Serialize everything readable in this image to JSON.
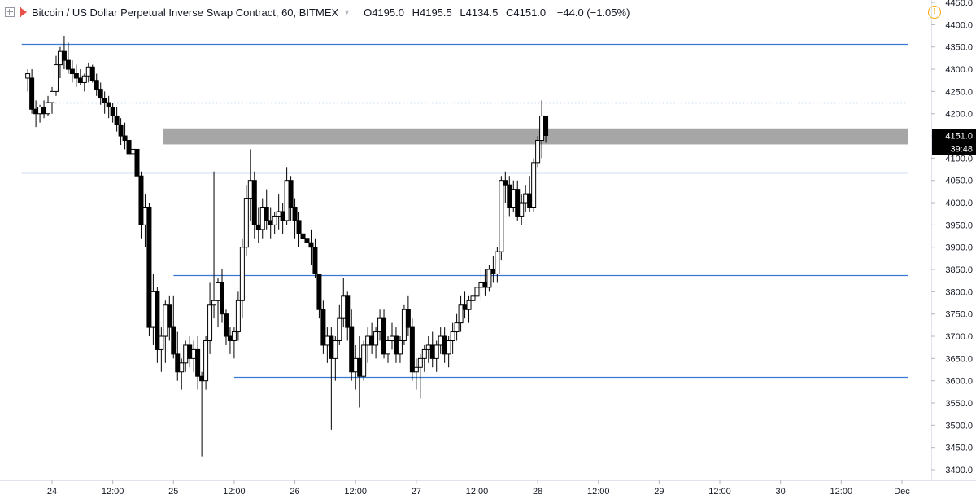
{
  "header": {
    "title": "Bitcoin / US Dollar Perpetual Inverse Swap Contract, 60, BITMEX",
    "open": "O4195.0",
    "high": "H4195.5",
    "low": "L4134.5",
    "close": "C4151.0",
    "change": "−44.0 (−1.05%)",
    "icons": [
      "expand-icon",
      "flag-icon",
      "chevron-down-icon",
      "warning-icon"
    ]
  },
  "price_badge": "4151.0",
  "countdown_badge": "39:48",
  "colors": {
    "up_fill": "#ffffff",
    "down_fill": "#000000",
    "candle_outline": "#000000",
    "level_line": "#3a78d6",
    "zone_fill": "#a6a6a6",
    "axis_text": "#131722",
    "badge_bg": "#000000"
  },
  "chart_data": {
    "type": "candlestick",
    "symbol": "Bitcoin / US Dollar Perpetual Inverse Swap Contract",
    "interval": "60",
    "exchange": "BITMEX",
    "y_axis": {
      "ticks": [
        3400,
        3450,
        3500,
        3550,
        3600,
        3650,
        3700,
        3750,
        3800,
        3850,
        3900,
        3950,
        4000,
        4050,
        4100,
        4150,
        4200,
        4250,
        4300,
        4350,
        4400,
        4450
      ],
      "tick_labels": [
        "3400.0",
        "3450.0",
        "3500.0",
        "3550.0",
        "3600.0",
        "3650.0",
        "3700.0",
        "3750.0",
        "3800.0",
        "3850.0",
        "3900.0",
        "3950.0",
        "4000.0",
        "4050.0",
        "4100.0",
        "4150.0",
        "4200.0",
        "4250.0",
        "4300.0",
        "4350.0",
        "4400.0",
        "4450.0"
      ],
      "range": [
        3375,
        4475
      ]
    },
    "x_axis": {
      "ticks": [
        {
          "t": 0,
          "label": "24"
        },
        {
          "t": 12,
          "label": "12:00"
        },
        {
          "t": 24,
          "label": "25"
        },
        {
          "t": 36,
          "label": "12:00"
        },
        {
          "t": 48,
          "label": "26"
        },
        {
          "t": 60,
          "label": "12:00"
        },
        {
          "t": 72,
          "label": "27"
        },
        {
          "t": 84,
          "label": "12:00"
        },
        {
          "t": 96,
          "label": "28"
        },
        {
          "t": 108,
          "label": "12:00"
        },
        {
          "t": 120,
          "label": "29"
        },
        {
          "t": 132,
          "label": "12:00"
        },
        {
          "t": 144,
          "label": "30"
        },
        {
          "t": 156,
          "label": "12:00"
        },
        {
          "t": 168,
          "label": "Dec"
        }
      ]
    },
    "horizontal_levels": [
      {
        "price": 4357,
        "style": "solid",
        "from_t": -6
      },
      {
        "price": 4226,
        "style": "dotted",
        "from_t": -3
      },
      {
        "price": 4068,
        "style": "solid",
        "from_t": -6
      },
      {
        "price": 3838,
        "style": "solid",
        "from_t": 24
      },
      {
        "price": 3608,
        "style": "solid",
        "from_t": 36
      }
    ],
    "zones": [
      {
        "from": 4131,
        "to": 4167,
        "from_t": 22
      }
    ],
    "candles": [
      [
        -4.8,
        4280,
        4300,
        4250,
        4290
      ],
      [
        -4.0,
        4280,
        4300,
        4200,
        4210
      ],
      [
        -3.2,
        4210,
        4230,
        4170,
        4200
      ],
      [
        -2.4,
        4200,
        4220,
        4180,
        4215
      ],
      [
        -1.6,
        4215,
        4230,
        4190,
        4200
      ],
      [
        -0.8,
        4200,
        4240,
        4195,
        4225
      ],
      [
        0.0,
        4225,
        4260,
        4200,
        4250
      ],
      [
        0.8,
        4250,
        4330,
        4240,
        4310
      ],
      [
        1.6,
        4310,
        4350,
        4280,
        4340
      ],
      [
        2.4,
        4340,
        4375,
        4300,
        4320
      ],
      [
        3.2,
        4320,
        4360,
        4290,
        4300
      ],
      [
        4.0,
        4300,
        4320,
        4270,
        4290
      ],
      [
        4.8,
        4290,
        4310,
        4260,
        4280
      ],
      [
        5.6,
        4280,
        4300,
        4265,
        4270
      ],
      [
        6.4,
        4270,
        4290,
        4250,
        4285
      ],
      [
        7.2,
        4285,
        4315,
        4270,
        4305
      ],
      [
        8.0,
        4305,
        4310,
        4270,
        4275
      ],
      [
        8.8,
        4275,
        4290,
        4240,
        4255
      ],
      [
        9.6,
        4255,
        4270,
        4220,
        4235
      ],
      [
        10.4,
        4235,
        4250,
        4200,
        4225
      ],
      [
        11.2,
        4225,
        4240,
        4190,
        4215
      ],
      [
        12.0,
        4215,
        4225,
        4180,
        4195
      ],
      [
        12.8,
        4195,
        4215,
        4160,
        4175
      ],
      [
        13.6,
        4175,
        4190,
        4130,
        4150
      ],
      [
        14.4,
        4150,
        4180,
        4120,
        4140
      ],
      [
        15.2,
        4140,
        4150,
        4100,
        4110
      ],
      [
        16.0,
        4110,
        4130,
        4095,
        4120
      ],
      [
        16.8,
        4120,
        4135,
        4040,
        4060
      ],
      [
        17.6,
        4060,
        4070,
        3920,
        3950
      ],
      [
        18.4,
        3950,
        4020,
        3900,
        3990
      ],
      [
        19.2,
        3990,
        4000,
        3700,
        3720
      ],
      [
        20.0,
        3720,
        3840,
        3680,
        3800
      ],
      [
        20.8,
        3800,
        3810,
        3640,
        3670
      ],
      [
        21.6,
        3670,
        3720,
        3620,
        3700
      ],
      [
        22.4,
        3700,
        3780,
        3640,
        3770
      ],
      [
        23.2,
        3770,
        3790,
        3690,
        3720
      ],
      [
        24.0,
        3720,
        3790,
        3650,
        3660
      ],
      [
        24.8,
        3660,
        3710,
        3600,
        3620
      ],
      [
        25.6,
        3620,
        3650,
        3580,
        3640
      ],
      [
        26.4,
        3640,
        3690,
        3620,
        3680
      ],
      [
        27.2,
        3680,
        3700,
        3630,
        3650
      ],
      [
        28.0,
        3650,
        3690,
        3620,
        3670
      ],
      [
        28.8,
        3670,
        3700,
        3580,
        3610
      ],
      [
        29.6,
        3610,
        3620,
        3430,
        3600
      ],
      [
        30.4,
        3600,
        3700,
        3580,
        3690
      ],
      [
        31.2,
        3690,
        3820,
        3660,
        3770
      ],
      [
        32.0,
        3770,
        4070,
        3740,
        3780
      ],
      [
        32.8,
        3780,
        3830,
        3720,
        3820
      ],
      [
        33.6,
        3820,
        3850,
        3730,
        3750
      ],
      [
        34.4,
        3750,
        3760,
        3680,
        3700
      ],
      [
        35.2,
        3700,
        3720,
        3660,
        3690
      ],
      [
        36.0,
        3690,
        3720,
        3650,
        3710
      ],
      [
        36.8,
        3710,
        3800,
        3690,
        3780
      ],
      [
        37.6,
        3780,
        3920,
        3740,
        3900
      ],
      [
        38.4,
        3900,
        4040,
        3880,
        4010
      ],
      [
        39.2,
        4010,
        4120,
        3960,
        4050
      ],
      [
        40.0,
        4050,
        4070,
        3920,
        3950
      ],
      [
        40.8,
        3950,
        3990,
        3910,
        3940
      ],
      [
        41.6,
        3940,
        4010,
        3920,
        3990
      ],
      [
        42.4,
        3990,
        4030,
        3940,
        3960
      ],
      [
        43.2,
        3960,
        3990,
        3920,
        3950
      ],
      [
        44.0,
        3950,
        3980,
        3930,
        3970
      ],
      [
        44.8,
        3970,
        4020,
        3940,
        3980
      ],
      [
        45.6,
        3980,
        4000,
        3930,
        3960
      ],
      [
        46.4,
        3960,
        4080,
        3950,
        4050
      ],
      [
        47.2,
        4050,
        4060,
        3960,
        3990
      ],
      [
        48.0,
        3990,
        4010,
        3920,
        3960
      ],
      [
        48.8,
        3960,
        3980,
        3900,
        3930
      ],
      [
        49.6,
        3930,
        3960,
        3890,
        3920
      ],
      [
        50.4,
        3920,
        3950,
        3880,
        3910
      ],
      [
        51.2,
        3910,
        3940,
        3860,
        3900
      ],
      [
        52.0,
        3900,
        3920,
        3830,
        3840
      ],
      [
        52.8,
        3840,
        3830,
        3740,
        3760
      ],
      [
        53.6,
        3760,
        3780,
        3660,
        3680
      ],
      [
        54.4,
        3680,
        3720,
        3640,
        3700
      ],
      [
        55.2,
        3700,
        3720,
        3490,
        3650
      ],
      [
        56.0,
        3650,
        3700,
        3600,
        3690
      ],
      [
        56.8,
        3690,
        3770,
        3680,
        3740
      ],
      [
        57.6,
        3740,
        3830,
        3720,
        3790
      ],
      [
        58.4,
        3790,
        3800,
        3690,
        3720
      ],
      [
        59.2,
        3720,
        3760,
        3600,
        3620
      ],
      [
        60.0,
        3620,
        3680,
        3580,
        3650
      ],
      [
        60.8,
        3650,
        3700,
        3540,
        3610
      ],
      [
        61.6,
        3610,
        3690,
        3600,
        3680
      ],
      [
        62.4,
        3680,
        3720,
        3640,
        3700
      ],
      [
        63.2,
        3700,
        3730,
        3660,
        3680
      ],
      [
        64.0,
        3680,
        3720,
        3650,
        3710
      ],
      [
        64.8,
        3710,
        3760,
        3690,
        3740
      ],
      [
        65.6,
        3740,
        3760,
        3650,
        3660
      ],
      [
        66.4,
        3660,
        3700,
        3640,
        3690
      ],
      [
        67.2,
        3690,
        3730,
        3670,
        3700
      ],
      [
        68.0,
        3700,
        3720,
        3640,
        3660
      ],
      [
        68.8,
        3660,
        3700,
        3640,
        3690
      ],
      [
        69.6,
        3690,
        3770,
        3680,
        3760
      ],
      [
        70.4,
        3760,
        3790,
        3700,
        3720
      ],
      [
        71.2,
        3720,
        3740,
        3600,
        3620
      ],
      [
        72.0,
        3620,
        3650,
        3580,
        3630
      ],
      [
        72.8,
        3630,
        3660,
        3560,
        3650
      ],
      [
        73.6,
        3650,
        3680,
        3620,
        3670
      ],
      [
        74.4,
        3670,
        3700,
        3640,
        3680
      ],
      [
        75.2,
        3680,
        3710,
        3630,
        3650
      ],
      [
        76.0,
        3650,
        3690,
        3620,
        3680
      ],
      [
        76.8,
        3680,
        3720,
        3660,
        3700
      ],
      [
        77.6,
        3700,
        3720,
        3640,
        3660
      ],
      [
        78.4,
        3660,
        3700,
        3630,
        3690
      ],
      [
        79.2,
        3690,
        3730,
        3660,
        3710
      ],
      [
        80.0,
        3710,
        3750,
        3690,
        3730
      ],
      [
        80.8,
        3730,
        3790,
        3710,
        3770
      ],
      [
        81.6,
        3770,
        3800,
        3740,
        3760
      ],
      [
        82.4,
        3760,
        3790,
        3730,
        3780
      ],
      [
        83.2,
        3780,
        3800,
        3750,
        3790
      ],
      [
        84.0,
        3790,
        3820,
        3770,
        3810
      ],
      [
        84.8,
        3810,
        3850,
        3780,
        3820
      ],
      [
        85.6,
        3820,
        3850,
        3790,
        3810
      ],
      [
        86.4,
        3810,
        3860,
        3800,
        3850
      ],
      [
        87.2,
        3850,
        3880,
        3820,
        3840
      ],
      [
        88.0,
        3840,
        3900,
        3820,
        3890
      ],
      [
        88.8,
        3890,
        4060,
        3870,
        4050
      ],
      [
        89.6,
        4050,
        4070,
        4000,
        4040
      ],
      [
        90.4,
        4040,
        4060,
        3970,
        3990
      ],
      [
        91.2,
        3990,
        4050,
        3980,
        4030
      ],
      [
        92.0,
        4030,
        4050,
        3960,
        3970
      ],
      [
        92.8,
        3970,
        4020,
        3950,
        4000
      ],
      [
        93.6,
        4000,
        4040,
        3980,
        4020
      ],
      [
        94.4,
        4020,
        4060,
        3980,
        3990
      ],
      [
        95.2,
        3990,
        4100,
        3980,
        4090
      ],
      [
        96.0,
        4090,
        4150,
        4080,
        4140
      ],
      [
        96.8,
        4140,
        4230,
        4100,
        4195
      ],
      [
        97.6,
        4195,
        4195.5,
        4134.5,
        4151
      ]
    ]
  }
}
